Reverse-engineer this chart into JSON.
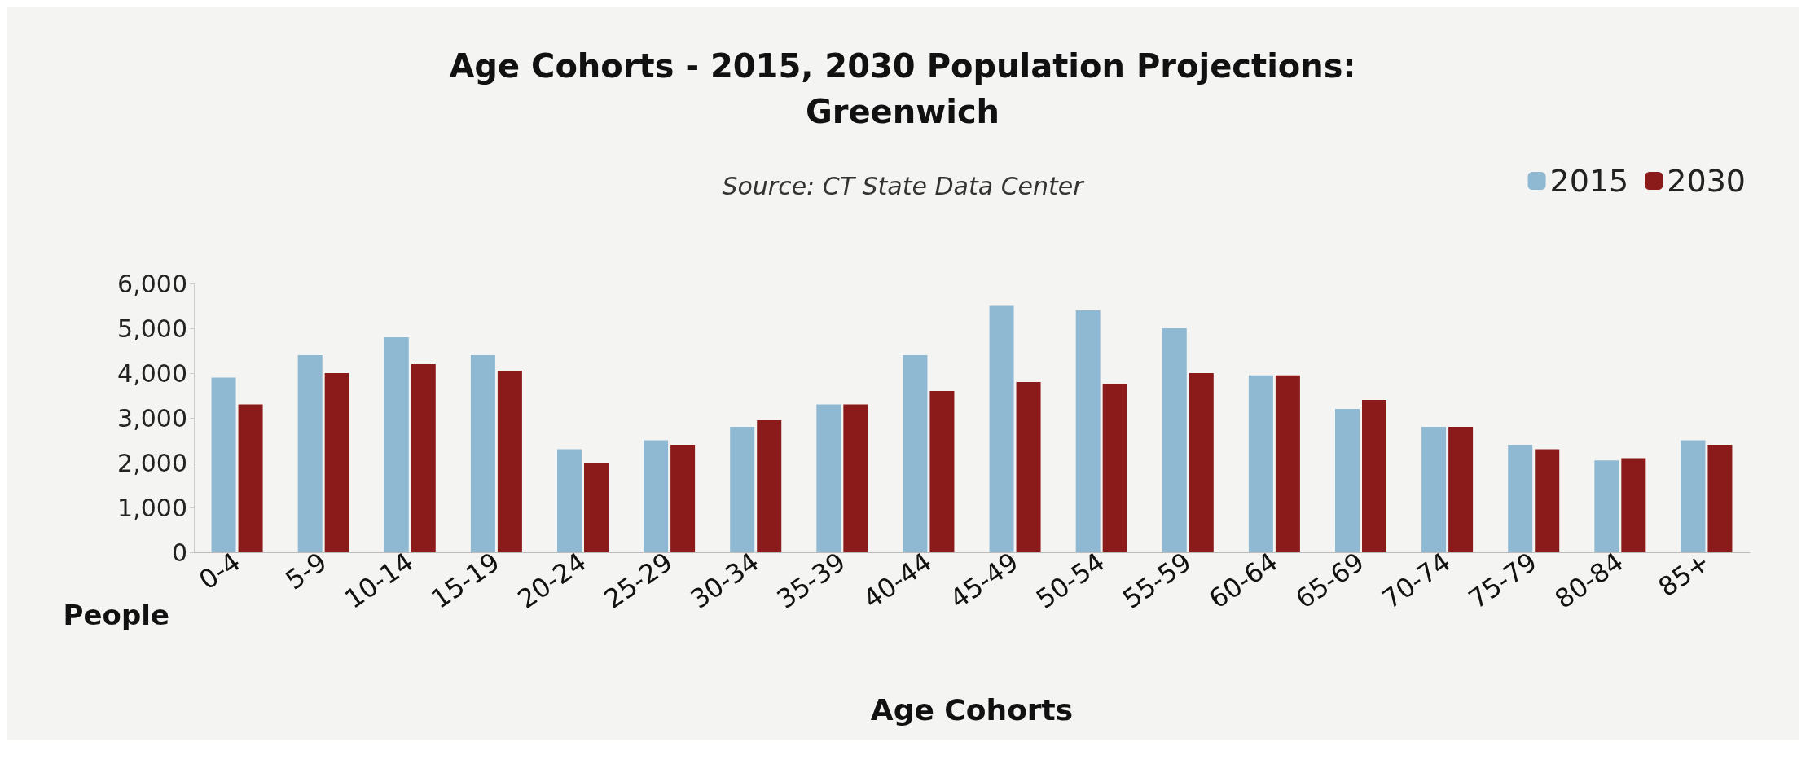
{
  "chart_data": {
    "type": "bar",
    "title": "Age Cohorts - 2015, 2030 Population Projections:\nGreenwich",
    "subtitle": "Source: CT State Data Center",
    "xlabel": "Age Cohorts",
    "ylabel": "People",
    "categories": [
      "0-4",
      "5-9",
      "10-14",
      "15-19",
      "20-24",
      "25-29",
      "30-34",
      "35-39",
      "40-44",
      "45-49",
      "50-54",
      "55-59",
      "60-64",
      "65-69",
      "70-74",
      "75-79",
      "80-84",
      "85+"
    ],
    "series": [
      {
        "name": "2015",
        "color": "#8fb8d3",
        "values": [
          3900,
          4400,
          4800,
          4400,
          2300,
          2500,
          2800,
          3300,
          4400,
          5500,
          5400,
          5000,
          3950,
          3200,
          2800,
          2400,
          2050,
          2500
        ]
      },
      {
        "name": "2030",
        "color": "#8b1a1a",
        "values": [
          3300,
          4000,
          4200,
          4050,
          2000,
          2400,
          2950,
          3300,
          3600,
          3800,
          3750,
          4000,
          3950,
          3400,
          2800,
          2300,
          2100,
          2400
        ]
      }
    ],
    "ylim": [
      0,
      6000
    ],
    "yticks": [
      0,
      {
        "value": 1000,
        "label": "1,000"
      },
      {
        "value": 2000,
        "label": "2,000"
      },
      {
        "value": 3000,
        "label": "3,000"
      },
      {
        "value": 4000,
        "label": "4,000"
      },
      {
        "value": 5000,
        "label": "5,000"
      },
      {
        "value": 6000,
        "label": "6,000"
      }
    ],
    "grid": false,
    "legend": "top right"
  }
}
